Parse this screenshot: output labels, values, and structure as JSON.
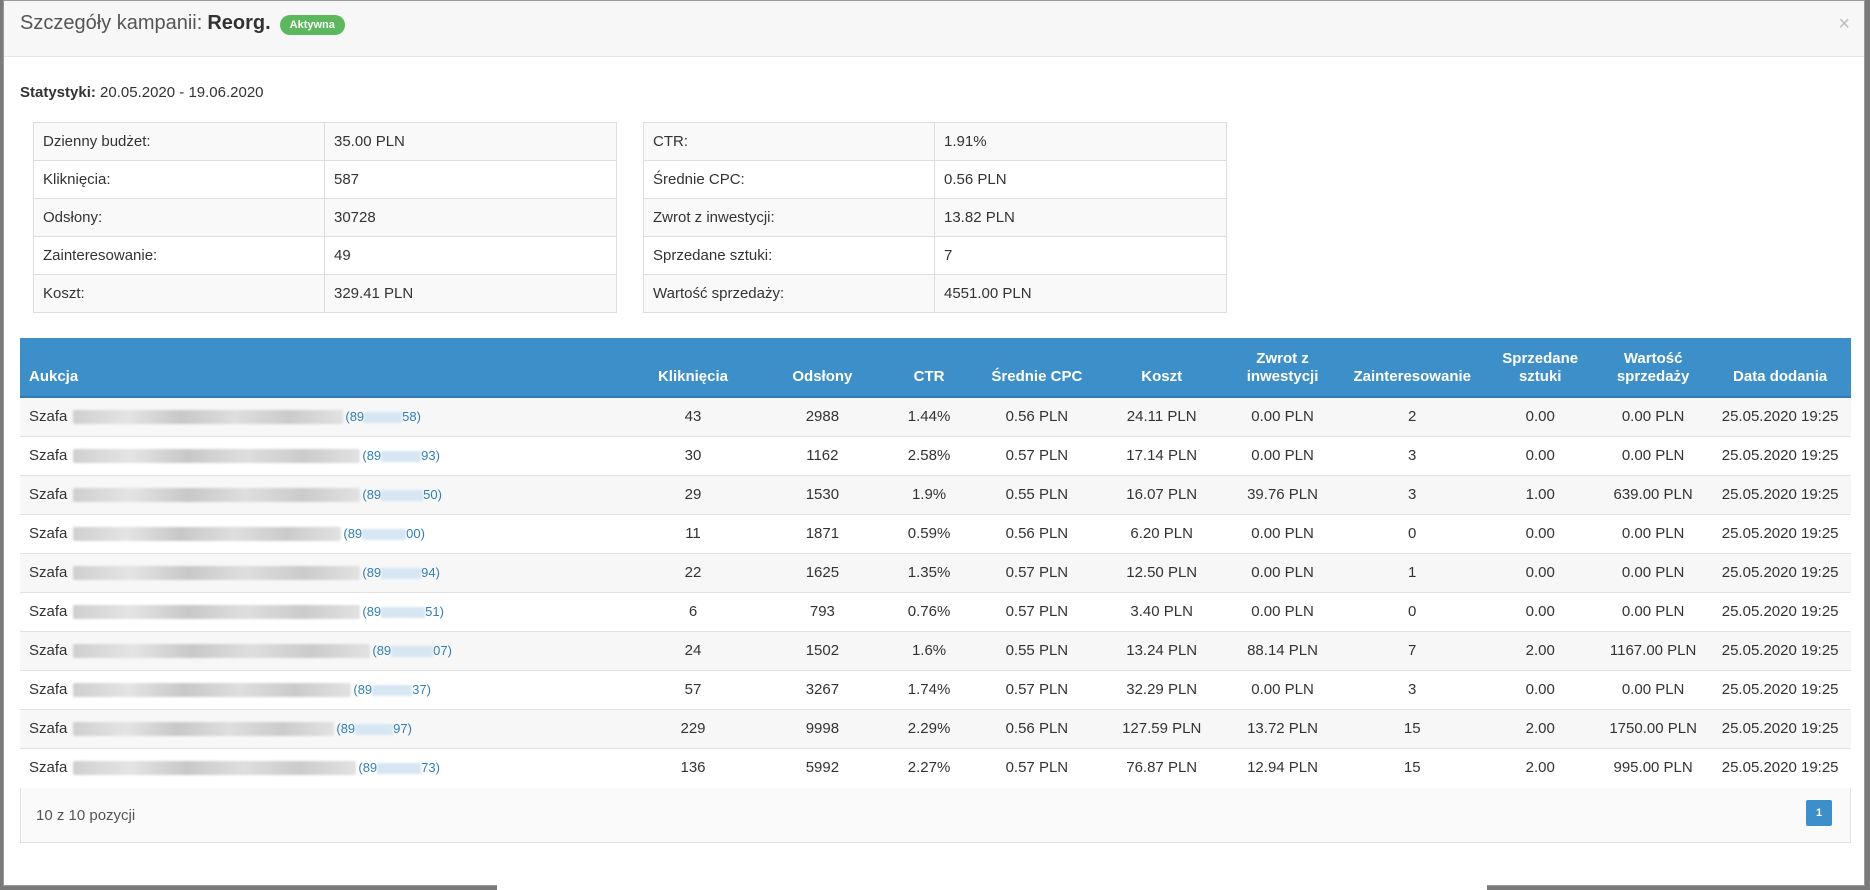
{
  "modal": {
    "title_prefix": "Szczegóły kampanii:",
    "campaign_name": "Reorg.",
    "status_badge": "Aktywna",
    "close_glyph": "×"
  },
  "stats": {
    "label": "Statystyki:",
    "range": "20.05.2020 - 19.06.2020"
  },
  "summary_left": [
    {
      "label": "Dzienny budżet:",
      "value": "35.00 PLN"
    },
    {
      "label": "Kliknięcia:",
      "value": "587"
    },
    {
      "label": "Odsłony:",
      "value": "30728"
    },
    {
      "label": "Zainteresowanie:",
      "value": "49"
    },
    {
      "label": "Koszt:",
      "value": "329.41 PLN"
    }
  ],
  "summary_right": [
    {
      "label": "CTR:",
      "value": "1.91%"
    },
    {
      "label": "Średnie CPC:",
      "value": "0.56 PLN"
    },
    {
      "label": "Zwrot z inwestycji:",
      "value": "13.82 PLN"
    },
    {
      "label": "Sprzedane sztuki:",
      "value": "7"
    },
    {
      "label": "Wartość sprzedaży:",
      "value": "4551.00 PLN"
    }
  ],
  "table": {
    "headers": [
      "Aukcja",
      "Kliknięcia",
      "Odsłony",
      "CTR",
      "Średnie CPC",
      "Koszt",
      "Zwrot z inwestycji",
      "Zainteresowanie",
      "Sprzedane sztuki",
      "Wartość sprzedaży",
      "Data dodania"
    ],
    "rows": [
      {
        "name": "Szafa",
        "code_start": "(89",
        "code_end": "58)",
        "clicks": "43",
        "views": "2988",
        "ctr": "1.44%",
        "cpc": "0.56 PLN",
        "cost": "24.11 PLN",
        "roi": "0.00 PLN",
        "interest": "2",
        "sold": "0.00",
        "sales_value": "0.00 PLN",
        "date": "25.05.2020 19:25"
      },
      {
        "name": "Szafa",
        "code_start": "(89",
        "code_end": "93)",
        "clicks": "30",
        "views": "1162",
        "ctr": "2.58%",
        "cpc": "0.57 PLN",
        "cost": "17.14 PLN",
        "roi": "0.00 PLN",
        "interest": "3",
        "sold": "0.00",
        "sales_value": "0.00 PLN",
        "date": "25.05.2020 19:25"
      },
      {
        "name": "Szafa",
        "code_start": "(89",
        "code_end": "50)",
        "clicks": "29",
        "views": "1530",
        "ctr": "1.9%",
        "cpc": "0.55 PLN",
        "cost": "16.07 PLN",
        "roi": "39.76 PLN",
        "interest": "3",
        "sold": "1.00",
        "sales_value": "639.00 PLN",
        "date": "25.05.2020 19:25"
      },
      {
        "name": "Szafa",
        "code_start": "(89",
        "code_end": "00)",
        "clicks": "11",
        "views": "1871",
        "ctr": "0.59%",
        "cpc": "0.56 PLN",
        "cost": "6.20 PLN",
        "roi": "0.00 PLN",
        "interest": "0",
        "sold": "0.00",
        "sales_value": "0.00 PLN",
        "date": "25.05.2020 19:25"
      },
      {
        "name": "Szafa",
        "code_start": "(89",
        "code_end": "94)",
        "clicks": "22",
        "views": "1625",
        "ctr": "1.35%",
        "cpc": "0.57 PLN",
        "cost": "12.50 PLN",
        "roi": "0.00 PLN",
        "interest": "1",
        "sold": "0.00",
        "sales_value": "0.00 PLN",
        "date": "25.05.2020 19:25"
      },
      {
        "name": "Szafa",
        "code_start": "(89",
        "code_end": "51)",
        "clicks": "6",
        "views": "793",
        "ctr": "0.76%",
        "cpc": "0.57 PLN",
        "cost": "3.40 PLN",
        "roi": "0.00 PLN",
        "interest": "0",
        "sold": "0.00",
        "sales_value": "0.00 PLN",
        "date": "25.05.2020 19:25"
      },
      {
        "name": "Szafa",
        "code_start": "(89",
        "code_end": "07)",
        "clicks": "24",
        "views": "1502",
        "ctr": "1.6%",
        "cpc": "0.55 PLN",
        "cost": "13.24 PLN",
        "roi": "88.14 PLN",
        "interest": "7",
        "sold": "2.00",
        "sales_value": "1167.00 PLN",
        "date": "25.05.2020 19:25"
      },
      {
        "name": "Szafa",
        "code_start": "(89",
        "code_end": "37)",
        "clicks": "57",
        "views": "3267",
        "ctr": "1.74%",
        "cpc": "0.57 PLN",
        "cost": "32.29 PLN",
        "roi": "0.00 PLN",
        "interest": "3",
        "sold": "0.00",
        "sales_value": "0.00 PLN",
        "date": "25.05.2020 19:25"
      },
      {
        "name": "Szafa",
        "code_start": "(89",
        "code_end": "97)",
        "clicks": "229",
        "views": "9998",
        "ctr": "2.29%",
        "cpc": "0.56 PLN",
        "cost": "127.59 PLN",
        "roi": "13.72 PLN",
        "interest": "15",
        "sold": "2.00",
        "sales_value": "1750.00 PLN",
        "date": "25.05.2020 19:25"
      },
      {
        "name": "Szafa",
        "code_start": "(89",
        "code_end": "73)",
        "clicks": "136",
        "views": "5992",
        "ctr": "2.27%",
        "cpc": "0.57 PLN",
        "cost": "76.87 PLN",
        "roi": "12.94 PLN",
        "interest": "15",
        "sold": "2.00",
        "sales_value": "995.00 PLN",
        "date": "25.05.2020 19:25"
      }
    ]
  },
  "footer": {
    "summary": "10 z 10 pozycji",
    "current_page": "1"
  },
  "colors": {
    "header_blue": "#3d8fca",
    "badge_green": "#5cb85c",
    "link_blue": "#2e7fb8"
  }
}
